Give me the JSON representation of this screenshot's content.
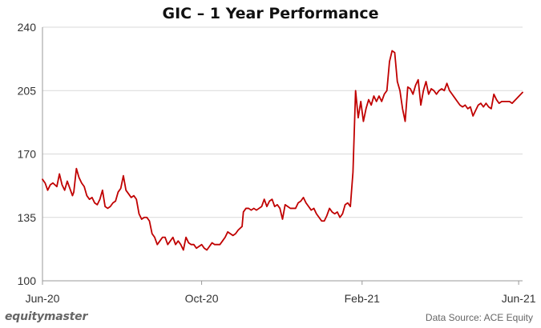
{
  "title": "GIC – 1 Year Performance",
  "brand": "equitymaster",
  "source": "Data Source: ACE Equity",
  "colors": {
    "line": "#c00000",
    "grid": "#d9d9d9",
    "axis": "#999999",
    "text": "#333333"
  },
  "chart_data": {
    "type": "line",
    "title": "GIC – 1 Year Performance",
    "xlabel": "",
    "ylabel": "",
    "ylim": [
      100,
      240
    ],
    "yticks": [
      100,
      135,
      170,
      205,
      240
    ],
    "grid": true,
    "xtick_labels": [
      {
        "label": "Jun-20",
        "date": "2020-06-01"
      },
      {
        "label": "Oct-20",
        "date": "2020-10-01"
      },
      {
        "label": "Feb-21",
        "date": "2021-02-01"
      },
      {
        "label": "Jun-21",
        "date": "2021-06-01"
      }
    ],
    "series": [
      {
        "color": "#c00000",
        "points": [
          [
            "2020-06-01",
            156
          ],
          [
            "2020-06-03",
            154
          ],
          [
            "2020-06-05",
            150
          ],
          [
            "2020-06-07",
            153
          ],
          [
            "2020-06-09",
            154
          ],
          [
            "2020-06-12",
            152
          ],
          [
            "2020-06-14",
            159
          ],
          [
            "2020-06-16",
            153
          ],
          [
            "2020-06-18",
            150
          ],
          [
            "2020-06-20",
            155
          ],
          [
            "2020-06-22",
            151
          ],
          [
            "2020-06-24",
            147
          ],
          [
            "2020-06-25",
            149
          ],
          [
            "2020-06-27",
            162
          ],
          [
            "2020-06-29",
            157
          ],
          [
            "2020-07-01",
            154
          ],
          [
            "2020-07-03",
            152
          ],
          [
            "2020-07-05",
            147
          ],
          [
            "2020-07-07",
            145
          ],
          [
            "2020-07-09",
            146
          ],
          [
            "2020-07-11",
            143
          ],
          [
            "2020-07-13",
            142
          ],
          [
            "2020-07-15",
            145
          ],
          [
            "2020-07-17",
            150
          ],
          [
            "2020-07-19",
            141
          ],
          [
            "2020-07-21",
            140
          ],
          [
            "2020-07-23",
            141
          ],
          [
            "2020-07-25",
            143
          ],
          [
            "2020-07-27",
            144
          ],
          [
            "2020-07-29",
            149
          ],
          [
            "2020-07-31",
            151
          ],
          [
            "2020-08-02",
            158
          ],
          [
            "2020-08-04",
            150
          ],
          [
            "2020-08-06",
            148
          ],
          [
            "2020-08-08",
            146
          ],
          [
            "2020-08-10",
            147
          ],
          [
            "2020-08-12",
            145
          ],
          [
            "2020-08-14",
            137
          ],
          [
            "2020-08-16",
            134
          ],
          [
            "2020-08-18",
            135
          ],
          [
            "2020-08-20",
            135
          ],
          [
            "2020-08-22",
            133
          ],
          [
            "2020-08-24",
            126
          ],
          [
            "2020-08-26",
            124
          ],
          [
            "2020-08-28",
            120
          ],
          [
            "2020-08-30",
            122
          ],
          [
            "2020-09-01",
            124
          ],
          [
            "2020-09-03",
            124
          ],
          [
            "2020-09-05",
            120
          ],
          [
            "2020-09-07",
            122
          ],
          [
            "2020-09-09",
            124
          ],
          [
            "2020-09-11",
            120
          ],
          [
            "2020-09-13",
            122
          ],
          [
            "2020-09-15",
            120
          ],
          [
            "2020-09-17",
            117
          ],
          [
            "2020-09-19",
            124
          ],
          [
            "2020-09-21",
            121
          ],
          [
            "2020-09-23",
            120
          ],
          [
            "2020-09-25",
            120
          ],
          [
            "2020-09-27",
            118
          ],
          [
            "2020-09-29",
            119
          ],
          [
            "2020-10-01",
            120
          ],
          [
            "2020-10-03",
            118
          ],
          [
            "2020-10-05",
            117
          ],
          [
            "2020-10-07",
            119
          ],
          [
            "2020-10-09",
            121
          ],
          [
            "2020-10-11",
            120
          ],
          [
            "2020-10-13",
            120
          ],
          [
            "2020-10-15",
            120
          ],
          [
            "2020-10-17",
            122
          ],
          [
            "2020-10-19",
            124
          ],
          [
            "2020-10-21",
            127
          ],
          [
            "2020-10-23",
            126
          ],
          [
            "2020-10-25",
            125
          ],
          [
            "2020-10-27",
            126
          ],
          [
            "2020-10-29",
            128
          ],
          [
            "2020-11-01",
            130
          ],
          [
            "2020-11-02",
            138
          ],
          [
            "2020-11-04",
            140
          ],
          [
            "2020-11-06",
            140
          ],
          [
            "2020-11-08",
            139
          ],
          [
            "2020-11-10",
            140
          ],
          [
            "2020-11-12",
            139
          ],
          [
            "2020-11-14",
            140
          ],
          [
            "2020-11-16",
            141
          ],
          [
            "2020-11-18",
            145
          ],
          [
            "2020-11-20",
            141
          ],
          [
            "2020-11-22",
            144
          ],
          [
            "2020-11-24",
            145
          ],
          [
            "2020-11-26",
            141
          ],
          [
            "2020-11-28",
            142
          ],
          [
            "2020-11-30",
            140
          ],
          [
            "2020-12-02",
            134
          ],
          [
            "2020-12-04",
            142
          ],
          [
            "2020-12-06",
            141
          ],
          [
            "2020-12-08",
            140
          ],
          [
            "2020-12-10",
            140
          ],
          [
            "2020-12-12",
            140
          ],
          [
            "2020-12-14",
            143
          ],
          [
            "2020-12-16",
            144
          ],
          [
            "2020-12-18",
            146
          ],
          [
            "2020-12-20",
            143
          ],
          [
            "2020-12-22",
            141
          ],
          [
            "2020-12-24",
            139
          ],
          [
            "2020-12-26",
            140
          ],
          [
            "2020-12-28",
            137
          ],
          [
            "2020-12-30",
            135
          ],
          [
            "2021-01-01",
            133
          ],
          [
            "2021-01-03",
            133
          ],
          [
            "2021-01-05",
            136
          ],
          [
            "2021-01-07",
            140
          ],
          [
            "2021-01-09",
            138
          ],
          [
            "2021-01-11",
            137
          ],
          [
            "2021-01-13",
            138
          ],
          [
            "2021-01-15",
            135
          ],
          [
            "2021-01-17",
            137
          ],
          [
            "2021-01-19",
            142
          ],
          [
            "2021-01-21",
            143
          ],
          [
            "2021-01-23",
            141
          ],
          [
            "2021-01-25",
            160
          ],
          [
            "2021-01-27",
            205
          ],
          [
            "2021-01-29",
            190
          ],
          [
            "2021-01-31",
            199
          ],
          [
            "2021-02-02",
            188
          ],
          [
            "2021-02-04",
            195
          ],
          [
            "2021-02-06",
            200
          ],
          [
            "2021-02-08",
            197
          ],
          [
            "2021-02-10",
            202
          ],
          [
            "2021-02-12",
            199
          ],
          [
            "2021-02-14",
            202
          ],
          [
            "2021-02-16",
            199
          ],
          [
            "2021-02-18",
            203
          ],
          [
            "2021-02-20",
            205
          ],
          [
            "2021-02-22",
            221
          ],
          [
            "2021-02-24",
            227
          ],
          [
            "2021-02-26",
            226
          ],
          [
            "2021-02-28",
            210
          ],
          [
            "2021-03-02",
            205
          ],
          [
            "2021-03-04",
            195
          ],
          [
            "2021-03-06",
            188
          ],
          [
            "2021-03-08",
            207
          ],
          [
            "2021-03-10",
            206
          ],
          [
            "2021-03-12",
            203
          ],
          [
            "2021-03-14",
            208
          ],
          [
            "2021-03-16",
            211
          ],
          [
            "2021-03-18",
            197
          ],
          [
            "2021-03-20",
            205
          ],
          [
            "2021-03-22",
            210
          ],
          [
            "2021-03-24",
            203
          ],
          [
            "2021-03-26",
            206
          ],
          [
            "2021-03-28",
            205
          ],
          [
            "2021-03-30",
            203
          ],
          [
            "2021-04-01",
            205
          ],
          [
            "2021-04-03",
            206
          ],
          [
            "2021-04-05",
            205
          ],
          [
            "2021-04-07",
            209
          ],
          [
            "2021-04-09",
            205
          ],
          [
            "2021-04-11",
            203
          ],
          [
            "2021-04-13",
            201
          ],
          [
            "2021-04-15",
            199
          ],
          [
            "2021-04-17",
            197
          ],
          [
            "2021-04-19",
            196
          ],
          [
            "2021-04-21",
            197
          ],
          [
            "2021-04-23",
            195
          ],
          [
            "2021-04-25",
            196
          ],
          [
            "2021-04-27",
            191
          ],
          [
            "2021-04-29",
            194
          ],
          [
            "2021-05-01",
            197
          ],
          [
            "2021-05-03",
            198
          ],
          [
            "2021-05-05",
            196
          ],
          [
            "2021-05-07",
            198
          ],
          [
            "2021-05-09",
            196
          ],
          [
            "2021-05-11",
            195
          ],
          [
            "2021-05-13",
            203
          ],
          [
            "2021-05-15",
            200
          ],
          [
            "2021-05-17",
            198
          ],
          [
            "2021-05-19",
            199
          ],
          [
            "2021-05-21",
            199
          ],
          [
            "2021-05-23",
            199
          ],
          [
            "2021-05-25",
            199
          ],
          [
            "2021-05-27",
            198
          ],
          [
            "2021-06-04",
            204
          ]
        ]
      }
    ]
  }
}
